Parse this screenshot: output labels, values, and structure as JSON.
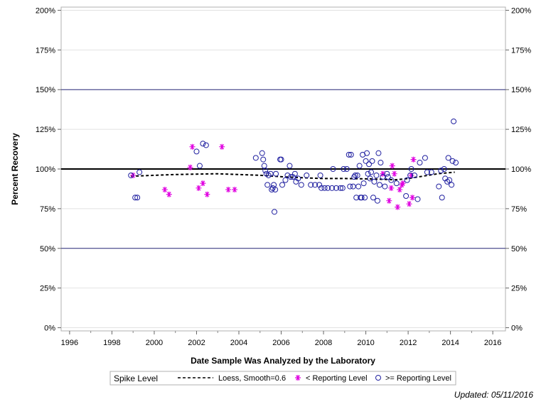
{
  "chart_data": {
    "type": "scatter",
    "xlabel": "Date Sample Was Analyzed by the Laboratory",
    "ylabel": "Percent Recovery",
    "xlim": [
      1995.6,
      2016.6
    ],
    "ylim": [
      -2,
      202
    ],
    "x_ticks": [
      1996,
      1998,
      2000,
      2002,
      2004,
      2006,
      2008,
      2010,
      2012,
      2014,
      2016
    ],
    "x_tick_labels": [
      "1996",
      "1998",
      "2000",
      "2002",
      "2004",
      "2006",
      "2008",
      "2010",
      "2012",
      "2014",
      "2016"
    ],
    "y_ticks": [
      0,
      25,
      50,
      75,
      100,
      125,
      150,
      175,
      200
    ],
    "y_tick_labels": [
      "0%",
      "25%",
      "50%",
      "75%",
      "100%",
      "125%",
      "150%",
      "175%",
      "200%"
    ],
    "reference_lines": [
      {
        "y": 100,
        "style": "bold-black"
      },
      {
        "y": 50,
        "style": "navy"
      },
      {
        "y": 150,
        "style": "navy"
      }
    ],
    "legend_title": "Spike Level",
    "legend_position": "bottom",
    "series": [
      {
        "name": "Loess, Smooth=0.6",
        "kind": "line",
        "color": "#000000",
        "points": [
          [
            1998.9,
            95.5
          ],
          [
            2000,
            96
          ],
          [
            2001,
            96.5
          ],
          [
            2002,
            96.8
          ],
          [
            2003,
            97
          ],
          [
            2004,
            96.5
          ],
          [
            2005,
            96
          ],
          [
            2005.6,
            95.5
          ],
          [
            2006.2,
            95
          ],
          [
            2007,
            94.5
          ],
          [
            2008,
            94
          ],
          [
            2009,
            94
          ],
          [
            2010,
            93.8
          ],
          [
            2010.8,
            93.5
          ],
          [
            2011.4,
            93.2
          ],
          [
            2012,
            94
          ],
          [
            2012.7,
            95.5
          ],
          [
            2013.4,
            97
          ],
          [
            2014.2,
            98
          ]
        ]
      },
      {
        "name": "< Reporting Level",
        "kind": "asterisk",
        "color": "#e000e0",
        "points": [
          [
            1999,
            96
          ],
          [
            2000.5,
            87
          ],
          [
            2000.7,
            84
          ],
          [
            2001.7,
            101
          ],
          [
            2001.8,
            114
          ],
          [
            2002.1,
            88
          ],
          [
            2002.3,
            91
          ],
          [
            2002.5,
            84
          ],
          [
            2003.2,
            114
          ],
          [
            2003.5,
            87
          ],
          [
            2003.8,
            87
          ],
          [
            2010.8,
            97
          ],
          [
            2011.1,
            80
          ],
          [
            2011.2,
            88
          ],
          [
            2011.25,
            102
          ],
          [
            2011.35,
            97
          ],
          [
            2011.5,
            76
          ],
          [
            2011.6,
            87
          ],
          [
            2011.7,
            90
          ],
          [
            2011.75,
            91
          ],
          [
            2012.05,
            78
          ],
          [
            2012.15,
            96
          ],
          [
            2012.2,
            82
          ],
          [
            2012.25,
            106
          ]
        ]
      },
      {
        "name": ">= Reporting Level",
        "kind": "circle",
        "color": "#2020a0",
        "points": [
          [
            1998.9,
            96
          ],
          [
            1999.1,
            82
          ],
          [
            1999.2,
            82
          ],
          [
            1999.3,
            98
          ],
          [
            2002,
            111
          ],
          [
            2002.15,
            102
          ],
          [
            2002.3,
            116
          ],
          [
            2002.45,
            115
          ],
          [
            2004.8,
            107
          ],
          [
            2005.1,
            110
          ],
          [
            2005.15,
            106
          ],
          [
            2005.2,
            102
          ],
          [
            2005.25,
            99
          ],
          [
            2005.3,
            97
          ],
          [
            2005.35,
            90
          ],
          [
            2005.4,
            96
          ],
          [
            2005.5,
            97
          ],
          [
            2005.55,
            87
          ],
          [
            2005.6,
            88
          ],
          [
            2005.65,
            90
          ],
          [
            2005.68,
            73
          ],
          [
            2005.72,
            87
          ],
          [
            2005.75,
            97
          ],
          [
            2005.95,
            106
          ],
          [
            2006.0,
            106
          ],
          [
            2006.05,
            90
          ],
          [
            2006.2,
            93
          ],
          [
            2006.3,
            96
          ],
          [
            2006.4,
            102
          ],
          [
            2006.45,
            95
          ],
          [
            2006.55,
            95
          ],
          [
            2006.65,
            97
          ],
          [
            2006.7,
            92
          ],
          [
            2006.8,
            94
          ],
          [
            2006.95,
            90
          ],
          [
            2007.2,
            96
          ],
          [
            2007.4,
            90
          ],
          [
            2007.6,
            90
          ],
          [
            2007.8,
            90
          ],
          [
            2007.85,
            96
          ],
          [
            2007.9,
            88
          ],
          [
            2008.05,
            88
          ],
          [
            2008.2,
            88
          ],
          [
            2008.4,
            88
          ],
          [
            2008.45,
            100
          ],
          [
            2008.6,
            88
          ],
          [
            2008.8,
            88
          ],
          [
            2008.9,
            88
          ],
          [
            2008.95,
            100
          ],
          [
            2009.1,
            100
          ],
          [
            2009.2,
            109
          ],
          [
            2009.25,
            89
          ],
          [
            2009.3,
            109
          ],
          [
            2009.4,
            89
          ],
          [
            2009.45,
            95
          ],
          [
            2009.5,
            96
          ],
          [
            2009.55,
            82
          ],
          [
            2009.6,
            96
          ],
          [
            2009.65,
            89
          ],
          [
            2009.7,
            102
          ],
          [
            2009.75,
            82
          ],
          [
            2009.8,
            82
          ],
          [
            2009.85,
            109
          ],
          [
            2009.9,
            91
          ],
          [
            2009.95,
            82
          ],
          [
            2010.0,
            105
          ],
          [
            2010.05,
            110
          ],
          [
            2010.1,
            97
          ],
          [
            2010.15,
            103
          ],
          [
            2010.2,
            94
          ],
          [
            2010.25,
            98
          ],
          [
            2010.3,
            105
          ],
          [
            2010.35,
            82
          ],
          [
            2010.4,
            92
          ],
          [
            2010.5,
            96
          ],
          [
            2010.55,
            80
          ],
          [
            2010.6,
            110
          ],
          [
            2010.65,
            90
          ],
          [
            2010.7,
            104
          ],
          [
            2010.8,
            95
          ],
          [
            2010.9,
            89
          ],
          [
            2011.0,
            97
          ],
          [
            2011.05,
            95
          ],
          [
            2011.2,
            93
          ],
          [
            2011.45,
            91
          ],
          [
            2011.9,
            83
          ],
          [
            2011.95,
            93
          ],
          [
            2012.1,
            96
          ],
          [
            2012.15,
            100
          ],
          [
            2012.3,
            96
          ],
          [
            2012.45,
            81
          ],
          [
            2012.55,
            104
          ],
          [
            2012.8,
            107
          ],
          [
            2012.9,
            98
          ],
          [
            2013.1,
            98
          ],
          [
            2013.45,
            89
          ],
          [
            2013.55,
            99
          ],
          [
            2013.6,
            82
          ],
          [
            2013.7,
            100
          ],
          [
            2013.75,
            94
          ],
          [
            2013.85,
            92
          ],
          [
            2013.9,
            107
          ],
          [
            2013.95,
            93
          ],
          [
            2014.05,
            90
          ],
          [
            2014.1,
            105
          ],
          [
            2014.15,
            130
          ],
          [
            2014.25,
            104
          ]
        ]
      }
    ],
    "updated_text": "Updated: 05/11/2016"
  }
}
